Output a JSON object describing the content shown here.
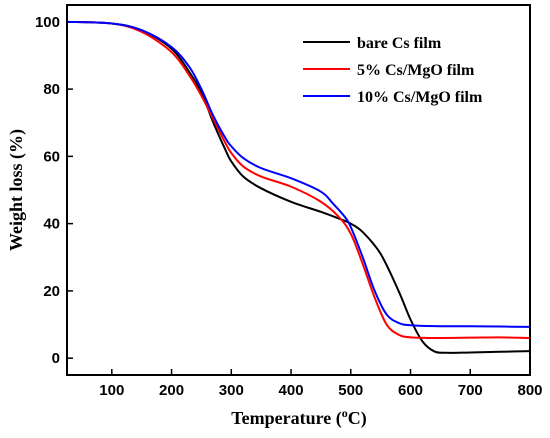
{
  "chart_data": {
    "type": "line",
    "xlabel": "Temperature",
    "xlabel_unit_base": "(",
    "xlabel_unit_sup": "o",
    "xlabel_unit_rest": "C)",
    "ylabel": "Weight loss (%)",
    "xlim": [
      25,
      800
    ],
    "ylim": [
      -5,
      105
    ],
    "xticks": [
      100,
      200,
      300,
      400,
      500,
      600,
      700,
      800
    ],
    "yticks": [
      0,
      20,
      40,
      60,
      80,
      100
    ],
    "legend_position": "top-right",
    "series": [
      {
        "name": "bare Cs film",
        "color": "#000000",
        "x": [
          25,
          100,
          150,
          200,
          230,
          250,
          270,
          290,
          300,
          320,
          350,
          400,
          450,
          480,
          500,
          520,
          550,
          580,
          600,
          620,
          640,
          660,
          700,
          750,
          800
        ],
        "y": [
          100,
          99.5,
          97.5,
          92,
          85,
          79,
          70,
          62,
          58.5,
          54,
          50.5,
          46.5,
          43.5,
          41.5,
          40,
          37.5,
          31,
          20,
          11.5,
          5,
          2,
          1.6,
          1.7,
          1.9,
          2.1
        ]
      },
      {
        "name": "5% Cs/MgO film",
        "color": "#ff0000",
        "x": [
          25,
          100,
          150,
          200,
          230,
          250,
          270,
          290,
          300,
          320,
          350,
          400,
          450,
          480,
          500,
          520,
          540,
          560,
          580,
          600,
          650,
          700,
          750,
          800
        ],
        "y": [
          100,
          99.5,
          97,
          91,
          84,
          78,
          71,
          64,
          61,
          57,
          54,
          51,
          46.5,
          42,
          37,
          28,
          18,
          10,
          7,
          6.2,
          6,
          6.1,
          6.2,
          6
        ]
      },
      {
        "name": "10% Cs/MgO film",
        "color": "#0000ff",
        "x": [
          25,
          100,
          150,
          200,
          230,
          250,
          270,
          290,
          300,
          320,
          350,
          400,
          450,
          470,
          490,
          500,
          520,
          540,
          560,
          580,
          600,
          650,
          700,
          750,
          800
        ],
        "y": [
          100,
          99.5,
          97.5,
          92.5,
          86.5,
          80,
          72,
          65.5,
          63,
          59.5,
          56.5,
          53.5,
          49.5,
          46,
          42,
          39,
          30,
          20,
          13,
          10.5,
          9.8,
          9.5,
          9.5,
          9.4,
          9.3
        ]
      }
    ]
  }
}
